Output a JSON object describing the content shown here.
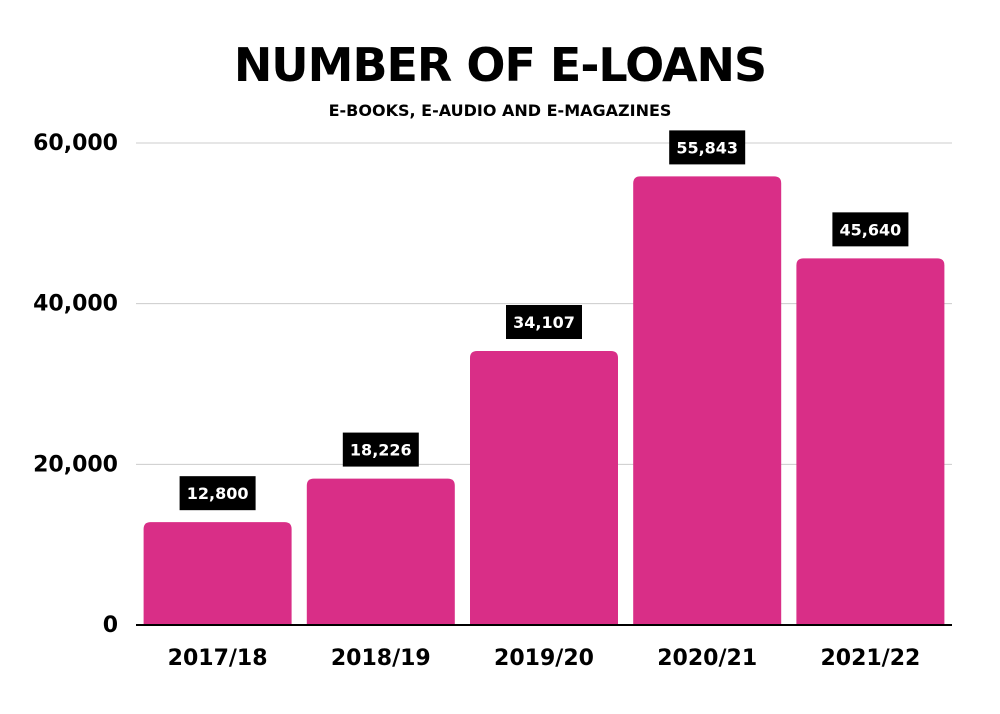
{
  "chart_data": {
    "type": "bar",
    "title": "NUMBER OF E-LOANS",
    "subtitle": "E-BOOKS, E-AUDIO AND E-MAGAZINES",
    "xlabel": "",
    "ylabel": "",
    "categories": [
      "2017/18",
      "2018/19",
      "2019/20",
      "2020/21",
      "2021/22"
    ],
    "values": [
      12800,
      18226,
      34107,
      55843,
      45640
    ],
    "data_labels": [
      "12,800",
      "18,226",
      "34,107",
      "55,843",
      "45,640"
    ],
    "ylim": [
      0,
      60000
    ],
    "yticks": [
      0,
      20000,
      40000,
      60000
    ],
    "ytick_labels": [
      "0",
      "20,000",
      "40,000",
      "60,000"
    ],
    "grid": true,
    "legend": "none",
    "colors": {
      "bar": "#d92e87",
      "label_background": "#000000",
      "label_text": "#ffffff",
      "grid": "#cccccc",
      "text": "#000000"
    }
  }
}
